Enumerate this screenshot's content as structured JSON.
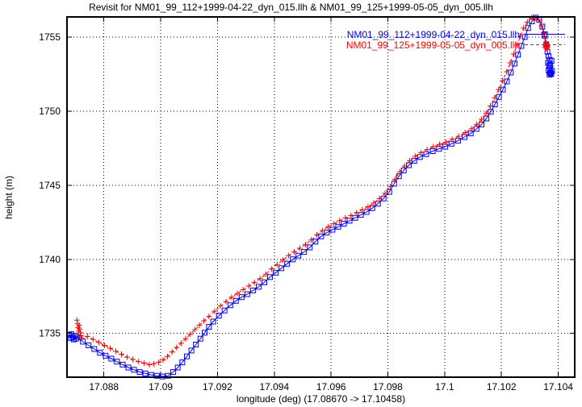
{
  "window": {
    "title": "Revisit for NM01_99_112+1999-04-22_dyn_015.llh & NM01_99_125+1999-05-05_dyn_005.llh"
  },
  "chart_data": {
    "type": "line",
    "title": "Revisit for NM01_99_112+1999-04-22_dyn_015.llh & NM01_99_125+1999-05-05_dyn_005.llh",
    "xlabel": "longitude (deg) (17.08670 -> 17.10458)",
    "ylabel": "height (m)",
    "xlim": [
      17.0867,
      17.10458
    ],
    "ylim": [
      1732.05,
      1756.35
    ],
    "grid": true,
    "legend_position": "top-right-inside",
    "colors": {
      "background": "#ffffff",
      "axis": "#000000",
      "grid": "#000000",
      "series1": "#0000ff",
      "series2": "#ff0000"
    },
    "x_ticks": [
      {
        "value": 17.088,
        "label": "17.088"
      },
      {
        "value": 17.09,
        "label": "17.09"
      },
      {
        "value": 17.092,
        "label": "17.092"
      },
      {
        "value": 17.094,
        "label": "17.094"
      },
      {
        "value": 17.096,
        "label": "17.096"
      },
      {
        "value": 17.098,
        "label": "17.098"
      },
      {
        "value": 17.1,
        "label": "17.1"
      },
      {
        "value": 17.102,
        "label": "17.102"
      },
      {
        "value": 17.104,
        "label": "17.104"
      }
    ],
    "y_ticks": [
      {
        "value": 1735,
        "label": "1735"
      },
      {
        "value": 1740,
        "label": "1740"
      },
      {
        "value": 1745,
        "label": "1745"
      },
      {
        "value": 1750,
        "label": "1750"
      },
      {
        "value": 1755,
        "label": "1755"
      }
    ],
    "series": [
      {
        "name": "NM01_99_112+1999-04-22_dyn_015.llh",
        "color": "#0000ff",
        "marker": "square",
        "line": "solid",
        "points": [
          [
            17.08678,
            1734.9
          ],
          [
            17.08682,
            1734.7
          ],
          [
            17.08686,
            1734.95
          ],
          [
            17.0869,
            1734.75
          ],
          [
            17.08694,
            1734.6
          ],
          [
            17.08698,
            1734.85
          ],
          [
            17.08702,
            1734.65
          ],
          [
            17.08706,
            1734.75
          ],
          [
            17.08726,
            1734.45
          ],
          [
            17.08746,
            1734.2
          ],
          [
            17.08766,
            1733.95
          ],
          [
            17.08786,
            1733.7
          ],
          [
            17.08806,
            1733.5
          ],
          [
            17.08826,
            1733.3
          ],
          [
            17.08846,
            1733.1
          ],
          [
            17.08866,
            1732.9
          ],
          [
            17.08886,
            1732.7
          ],
          [
            17.08906,
            1732.55
          ],
          [
            17.08926,
            1732.4
          ],
          [
            17.08946,
            1732.3
          ],
          [
            17.08966,
            1732.2
          ],
          [
            17.08986,
            1732.15
          ],
          [
            17.09006,
            1732.1
          ],
          [
            17.09026,
            1732.15
          ],
          [
            17.09044,
            1732.4
          ],
          [
            17.0906,
            1732.7
          ],
          [
            17.09076,
            1733.05
          ],
          [
            17.09092,
            1733.45
          ],
          [
            17.09108,
            1733.85
          ],
          [
            17.09124,
            1734.25
          ],
          [
            17.0914,
            1734.65
          ],
          [
            17.09155,
            1735.05
          ],
          [
            17.0917,
            1735.45
          ],
          [
            17.09185,
            1735.8
          ],
          [
            17.09205,
            1736.2
          ],
          [
            17.09225,
            1736.55
          ],
          [
            17.09245,
            1736.9
          ],
          [
            17.09265,
            1737.2
          ],
          [
            17.09285,
            1737.45
          ],
          [
            17.09305,
            1737.65
          ],
          [
            17.09325,
            1737.9
          ],
          [
            17.09345,
            1738.15
          ],
          [
            17.09365,
            1738.45
          ],
          [
            17.09385,
            1738.8
          ],
          [
            17.09405,
            1739.1
          ],
          [
            17.09425,
            1739.4
          ],
          [
            17.09445,
            1739.7
          ],
          [
            17.09465,
            1740.0
          ],
          [
            17.09485,
            1740.25
          ],
          [
            17.09505,
            1740.5
          ],
          [
            17.09525,
            1740.8
          ],
          [
            17.09545,
            1741.2
          ],
          [
            17.09565,
            1741.55
          ],
          [
            17.09585,
            1741.8
          ],
          [
            17.09605,
            1742.0
          ],
          [
            17.09625,
            1742.2
          ],
          [
            17.09645,
            1742.4
          ],
          [
            17.09665,
            1742.6
          ],
          [
            17.09685,
            1742.8
          ],
          [
            17.09705,
            1743.0
          ],
          [
            17.09725,
            1743.2
          ],
          [
            17.09745,
            1743.45
          ],
          [
            17.09765,
            1743.75
          ],
          [
            17.09785,
            1744.1
          ],
          [
            17.09805,
            1744.55
          ],
          [
            17.09822,
            1745.1
          ],
          [
            17.09839,
            1745.6
          ],
          [
            17.09856,
            1746.0
          ],
          [
            17.09874,
            1746.35
          ],
          [
            17.09893,
            1746.65
          ],
          [
            17.09913,
            1746.9
          ],
          [
            17.09935,
            1747.1
          ],
          [
            17.09958,
            1747.3
          ],
          [
            17.0998,
            1747.45
          ],
          [
            17.10002,
            1747.6
          ],
          [
            17.10024,
            1747.8
          ],
          [
            17.10047,
            1748.0
          ],
          [
            17.1007,
            1748.25
          ],
          [
            17.10092,
            1748.5
          ],
          [
            17.10112,
            1748.8
          ],
          [
            17.1013,
            1749.1
          ],
          [
            17.10147,
            1749.5
          ],
          [
            17.10162,
            1749.95
          ],
          [
            17.10177,
            1750.45
          ],
          [
            17.10191,
            1750.95
          ],
          [
            17.10205,
            1751.45
          ],
          [
            17.10219,
            1752.0
          ],
          [
            17.10233,
            1752.6
          ],
          [
            17.10246,
            1753.2
          ],
          [
            17.10258,
            1753.8
          ],
          [
            17.1027,
            1754.4
          ],
          [
            17.10282,
            1755.0
          ],
          [
            17.10294,
            1755.6
          ],
          [
            17.10307,
            1756.05
          ],
          [
            17.1032,
            1756.3
          ],
          [
            17.10333,
            1756.15
          ],
          [
            17.10344,
            1755.7
          ],
          [
            17.10352,
            1755.1
          ],
          [
            17.10358,
            1754.5
          ],
          [
            17.10362,
            1754.0
          ],
          [
            17.10366,
            1753.7
          ],
          [
            17.1037,
            1753.45
          ],
          [
            17.10364,
            1753.25
          ],
          [
            17.10368,
            1753.05
          ],
          [
            17.10372,
            1752.9
          ],
          [
            17.10366,
            1752.75
          ],
          [
            17.10371,
            1752.6
          ],
          [
            17.10375,
            1752.5
          ],
          [
            17.10369,
            1752.45
          ],
          [
            17.10374,
            1752.55
          ],
          [
            17.10378,
            1752.7
          ],
          [
            17.10372,
            1753.1
          ],
          [
            17.10376,
            1753.4
          ]
        ]
      },
      {
        "name": "NM01_99_125+1999-05-05_dyn_005.llh",
        "color": "#ff0000",
        "marker": "plus",
        "line": "dashed",
        "points": [
          [
            17.08705,
            1735.9
          ],
          [
            17.08707,
            1735.65
          ],
          [
            17.08709,
            1735.4
          ],
          [
            17.08711,
            1735.15
          ],
          [
            17.08713,
            1735.55
          ],
          [
            17.08715,
            1735.3
          ],
          [
            17.08717,
            1735.05
          ],
          [
            17.08719,
            1734.85
          ],
          [
            17.08722,
            1734.7
          ],
          [
            17.08742,
            1734.8
          ],
          [
            17.08762,
            1734.6
          ],
          [
            17.08782,
            1734.4
          ],
          [
            17.08802,
            1734.2
          ],
          [
            17.08822,
            1734.0
          ],
          [
            17.08842,
            1733.8
          ],
          [
            17.08862,
            1733.6
          ],
          [
            17.08882,
            1733.4
          ],
          [
            17.08902,
            1733.25
          ],
          [
            17.08922,
            1733.1
          ],
          [
            17.08942,
            1733.0
          ],
          [
            17.0896,
            1732.9
          ],
          [
            17.08976,
            1732.95
          ],
          [
            17.08992,
            1733.05
          ],
          [
            17.09008,
            1733.2
          ],
          [
            17.09024,
            1733.45
          ],
          [
            17.0904,
            1733.75
          ],
          [
            17.09056,
            1734.05
          ],
          [
            17.09072,
            1734.35
          ],
          [
            17.09088,
            1734.65
          ],
          [
            17.09104,
            1734.95
          ],
          [
            17.0912,
            1735.25
          ],
          [
            17.09136,
            1735.55
          ],
          [
            17.09152,
            1735.85
          ],
          [
            17.0917,
            1736.15
          ],
          [
            17.0919,
            1736.5
          ],
          [
            17.0921,
            1736.85
          ],
          [
            17.0923,
            1737.15
          ],
          [
            17.0925,
            1737.45
          ],
          [
            17.0927,
            1737.7
          ],
          [
            17.0929,
            1737.95
          ],
          [
            17.0931,
            1738.2
          ],
          [
            17.0933,
            1738.45
          ],
          [
            17.0935,
            1738.7
          ],
          [
            17.0937,
            1739.0
          ],
          [
            17.0939,
            1739.35
          ],
          [
            17.0941,
            1739.65
          ],
          [
            17.0943,
            1739.95
          ],
          [
            17.0945,
            1740.25
          ],
          [
            17.0947,
            1740.5
          ],
          [
            17.0949,
            1740.75
          ],
          [
            17.0951,
            1741.0
          ],
          [
            17.0953,
            1741.3
          ],
          [
            17.0955,
            1741.65
          ],
          [
            17.0957,
            1741.95
          ],
          [
            17.0959,
            1742.2
          ],
          [
            17.0961,
            1742.4
          ],
          [
            17.0963,
            1742.6
          ],
          [
            17.0965,
            1742.8
          ],
          [
            17.0967,
            1742.95
          ],
          [
            17.0969,
            1743.15
          ],
          [
            17.0971,
            1743.35
          ],
          [
            17.0973,
            1743.55
          ],
          [
            17.0975,
            1743.8
          ],
          [
            17.0977,
            1744.1
          ],
          [
            17.0979,
            1744.45
          ],
          [
            17.09808,
            1744.9
          ],
          [
            17.09825,
            1745.4
          ],
          [
            17.09842,
            1745.9
          ],
          [
            17.09859,
            1746.3
          ],
          [
            17.09877,
            1746.65
          ],
          [
            17.09896,
            1746.95
          ],
          [
            17.09916,
            1747.2
          ],
          [
            17.09938,
            1747.4
          ],
          [
            17.0996,
            1747.6
          ],
          [
            17.09982,
            1747.75
          ],
          [
            17.10004,
            1747.9
          ],
          [
            17.10026,
            1748.1
          ],
          [
            17.10049,
            1748.3
          ],
          [
            17.10072,
            1748.55
          ],
          [
            17.10094,
            1748.8
          ],
          [
            17.10113,
            1749.1
          ],
          [
            17.1013,
            1749.45
          ],
          [
            17.10146,
            1749.85
          ],
          [
            17.10161,
            1750.35
          ],
          [
            17.10176,
            1750.9
          ],
          [
            17.1019,
            1751.45
          ],
          [
            17.10204,
            1752.05
          ],
          [
            17.10218,
            1752.65
          ],
          [
            17.10231,
            1753.25
          ],
          [
            17.10243,
            1753.85
          ],
          [
            17.10255,
            1754.45
          ],
          [
            17.10266,
            1755.05
          ],
          [
            17.10278,
            1755.6
          ],
          [
            17.10291,
            1756.0
          ],
          [
            17.10305,
            1756.3
          ],
          [
            17.10318,
            1756.3
          ],
          [
            17.10331,
            1756.15
          ],
          [
            17.10341,
            1755.75
          ],
          [
            17.10348,
            1755.3
          ],
          [
            17.10353,
            1754.9
          ],
          [
            17.10357,
            1754.6
          ],
          [
            17.1036,
            1754.4
          ],
          [
            17.10354,
            1754.3
          ],
          [
            17.10358,
            1754.22
          ],
          [
            17.10362,
            1754.3
          ],
          [
            17.10356,
            1754.4
          ],
          [
            17.10363,
            1754.45
          ],
          [
            17.10359,
            1754.35
          ]
        ]
      }
    ]
  }
}
